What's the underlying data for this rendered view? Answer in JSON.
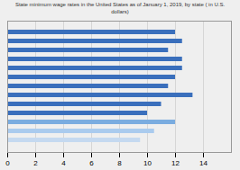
{
  "chart_data": {
    "type": "bar",
    "orientation": "horizontal",
    "title": "State minimum wage rates in the United States as of January 1, 2019, by state ( in U.S.\ndollars)",
    "categories": [
      null,
      null,
      null,
      null,
      null,
      null,
      null,
      null,
      null,
      null,
      null,
      null,
      null
    ],
    "values": [
      12.0,
      12.5,
      11.5,
      12.5,
      12.5,
      12.0,
      11.5,
      13.25,
      11.0,
      10.0,
      12.0,
      10.5,
      9.5
    ],
    "colors": [
      "#3a6fbc",
      "#3a6fbc",
      "#3a6fbc",
      "#3a6fbc",
      "#3a6fbc",
      "#3a6fbc",
      "#3a6fbc",
      "#3a6fbc",
      "#3a6fbc",
      "#3a6fbc",
      "#7aace0",
      "#aacbee",
      "#c5d9f0"
    ],
    "xlim": [
      0,
      16
    ],
    "xticks": [
      0,
      2,
      4,
      6,
      8,
      10,
      12,
      14
    ],
    "grid": true,
    "tick_labels": "x"
  }
}
